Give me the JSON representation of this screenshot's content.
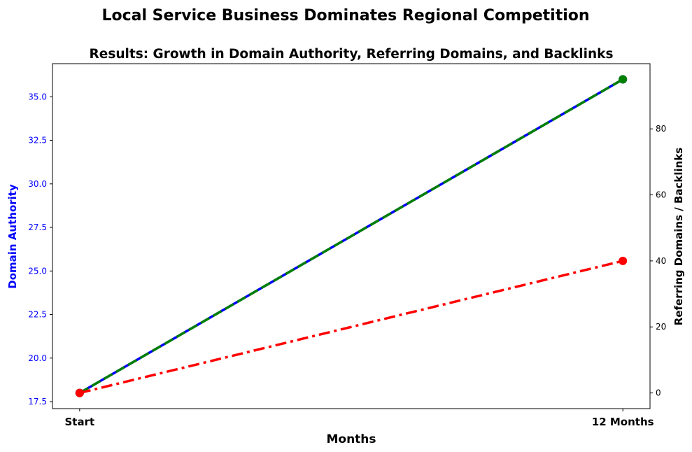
{
  "chart_data": {
    "type": "line",
    "suptitle": "Local Service Business Dominates Regional Competition",
    "title": "Results: Growth in Domain Authority, Referring Domains, and Backlinks",
    "xlabel": "Months",
    "ylabel_left": "Domain Authority",
    "ylabel_right": "Referring Domains / Backlinks",
    "categories": [
      "Start",
      "12 Months"
    ],
    "ylim_left": [
      17.1,
      36.9
    ],
    "ylim_right": [
      -4.75,
      99.75
    ],
    "yticks_left": [
      "17.5",
      "20.0",
      "22.5",
      "25.0",
      "27.5",
      "30.0",
      "32.5",
      "35.0"
    ],
    "yticks_right": [
      "0",
      "20",
      "40",
      "60",
      "80"
    ],
    "grid": false,
    "series": [
      {
        "axis": "left",
        "values": [
          18,
          36
        ],
        "color": "#0000ff",
        "style": "solid"
      },
      {
        "axis": "right",
        "values": [
          0,
          95
        ],
        "color": "#008000",
        "style": "dashed"
      },
      {
        "axis": "right",
        "values": [
          0,
          40
        ],
        "color": "#ff0000",
        "style": "dashdot"
      }
    ]
  }
}
